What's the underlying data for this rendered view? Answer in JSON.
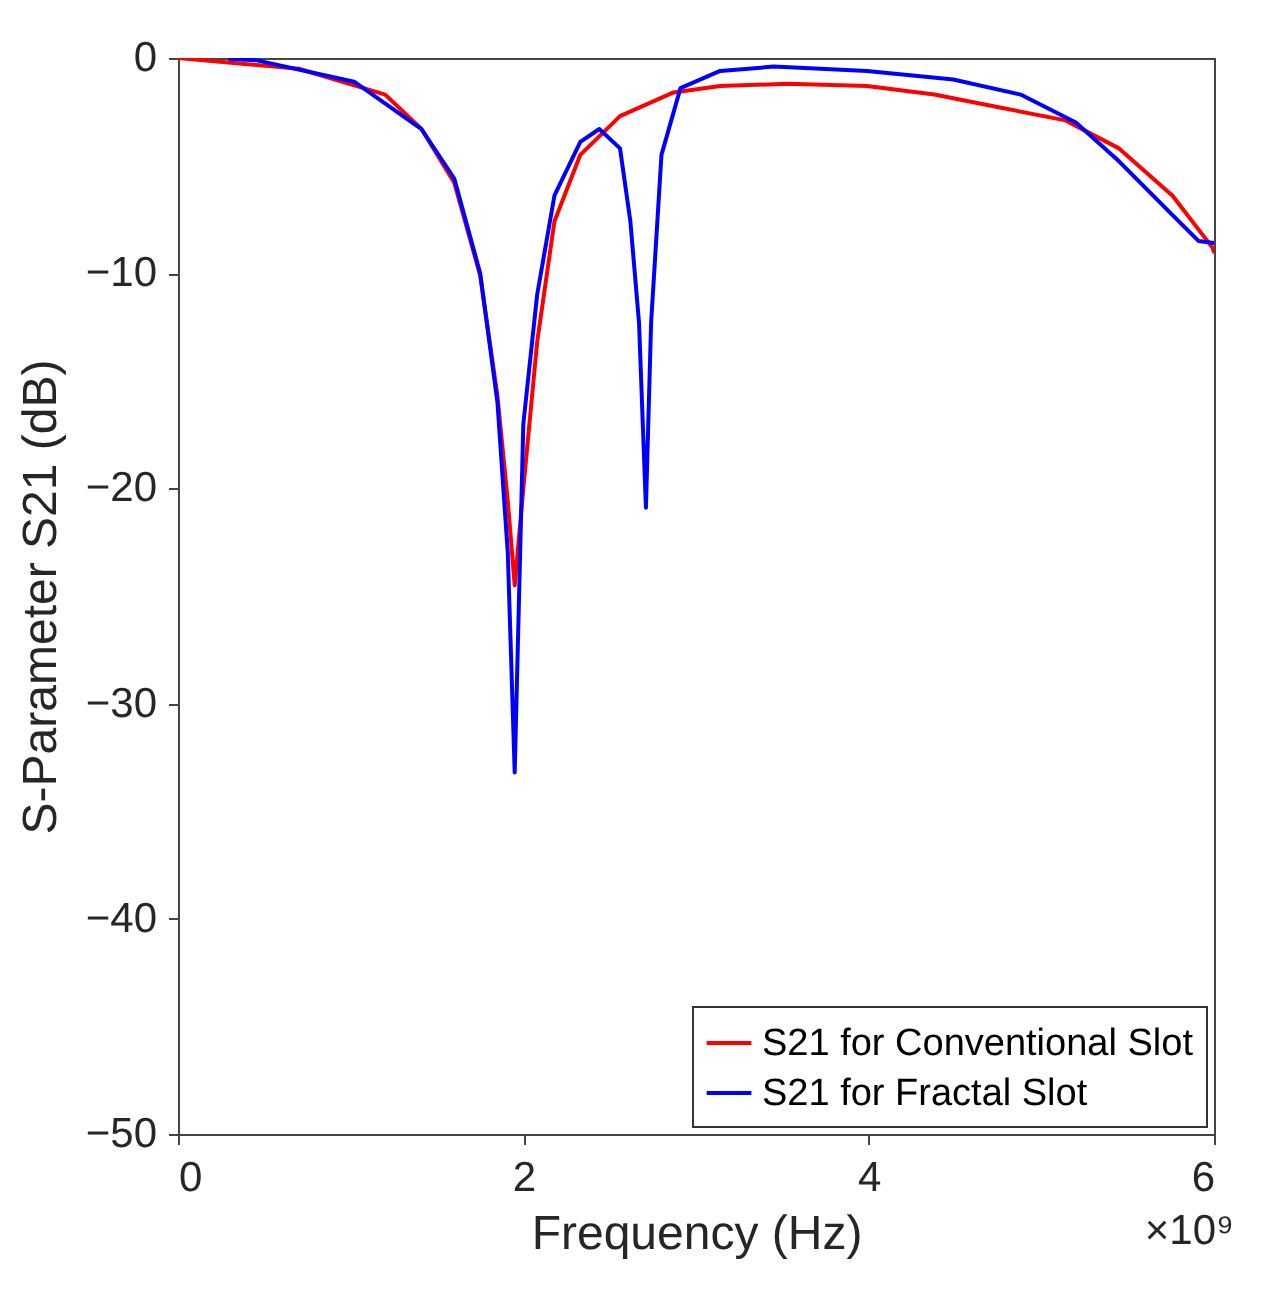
{
  "chart_data": {
    "type": "line",
    "xlabel": "Frequency (Hz)",
    "ylabel": "S-Parameter S21 (dB)",
    "xlim": [
      0,
      6
    ],
    "xticks": [
      0,
      2,
      4,
      6
    ],
    "ylim": [
      -50,
      0
    ],
    "yticks": [
      -50,
      -40,
      -30,
      -20,
      -10,
      0
    ],
    "grid": false,
    "legend": "bottom right",
    "marker": "none",
    "line_style": "solid",
    "annotations": [
      "×10⁹"
    ],
    "series": [
      {
        "name": "S21 for Conventional Slot",
        "color": "#ff0000",
        "x": [
          0,
          0.7,
          1.2,
          1.41,
          1.6,
          1.75,
          1.85,
          1.91,
          1.95,
          2.0,
          2.08,
          2.18,
          2.33,
          2.56,
          2.87,
          3.14,
          3.53,
          3.99,
          4.38,
          4.76,
          5.14,
          5.45,
          5.76,
          5.99,
          6
        ],
        "values": [
          0,
          -0.5,
          -1.7,
          -3.3,
          -5.8,
          -10.1,
          -15.7,
          -20.6,
          -24.5,
          -20,
          -13.2,
          -7.6,
          -4.5,
          -2.7,
          -1.6,
          -1.3,
          -1.2,
          -1.3,
          -1.7,
          -2.3,
          -2.9,
          -4.2,
          -6.4,
          -8.8,
          -9
        ]
      },
      {
        "name": "S21 for Fractal Slot",
        "color": "#0000ff",
        "x": [
          0.3,
          0.45,
          1.02,
          1.41,
          1.6,
          1.75,
          1.85,
          1.91,
          1.95,
          2.0,
          2.08,
          2.18,
          2.33,
          2.44,
          2.56,
          2.62,
          2.67,
          2.71,
          2.74,
          2.8,
          2.91,
          3.14,
          3.45,
          3.99,
          4.49,
          4.88,
          5.2,
          5.45,
          5.76,
          5.91,
          6
        ],
        "values": [
          -0.05,
          -0.1,
          -1.1,
          -3.3,
          -5.6,
          -10,
          -16,
          -23,
          -33.2,
          -17,
          -11,
          -6.4,
          -3.9,
          -3.3,
          -4.2,
          -7.6,
          -12.3,
          -20.9,
          -12.3,
          -4.5,
          -1.4,
          -0.6,
          -0.4,
          -0.6,
          -1,
          -1.7,
          -3,
          -4.8,
          -7.3,
          -8.5,
          -8.6
        ]
      }
    ]
  }
}
